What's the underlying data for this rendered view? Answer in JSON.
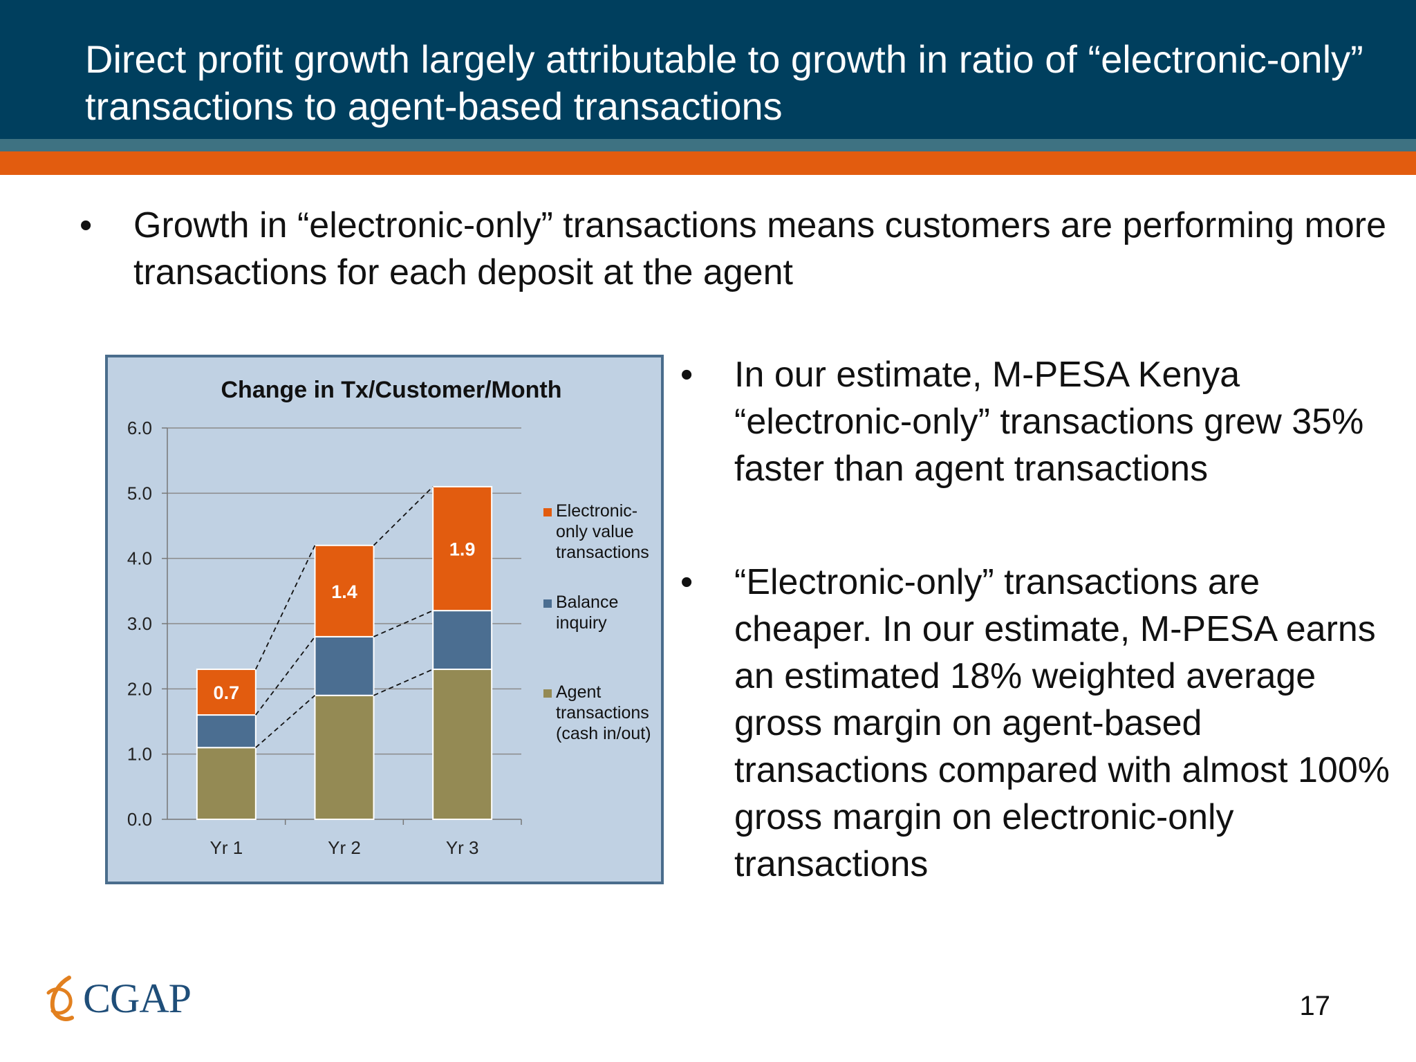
{
  "header": {
    "title": "Direct profit growth largely attributable to growth in ratio of “electronic-only” transactions to agent-based transactions"
  },
  "bullets": [
    {
      "symbol": "•",
      "text": "Growth in “electronic-only” transactions means customers are performing more transactions for each deposit at the agent"
    },
    {
      "symbol": "•",
      "text": "In our estimate, M-PESA Kenya “electronic-only” transactions grew 35% faster than agent transactions"
    },
    {
      "symbol": "•",
      "text": "“Electronic-only” transactions are cheaper. In our estimate, M-PESA earns an estimated 18% weighted average gross margin on agent-based transactions compared with almost 100% gross margin on electronic-only transactions"
    }
  ],
  "chart_data": {
    "type": "bar",
    "stacked": true,
    "title": "Change in Tx/Customer/Month",
    "categories": [
      "Yr 1",
      "Yr 2",
      "Yr 3"
    ],
    "ylim": [
      0,
      6
    ],
    "yticks": [
      "0.0",
      "1.0",
      "2.0",
      "3.0",
      "4.0",
      "5.0",
      "6.0"
    ],
    "grid": true,
    "legend": "right",
    "connector_lines": "dashed",
    "series": [
      {
        "name": "Agent transactions (cash in/out)",
        "legend_lines": [
          "Agent",
          "transactions",
          "(cash in/out)"
        ],
        "color": "#948a54",
        "values": [
          1.1,
          1.9,
          2.3
        ],
        "labels": [
          "",
          "",
          ""
        ]
      },
      {
        "name": "Balance inquiry",
        "legend_lines": [
          "Balance",
          "inquiry"
        ],
        "color": "#4b6e91",
        "values": [
          0.5,
          0.9,
          0.9
        ],
        "labels": [
          "",
          "",
          ""
        ]
      },
      {
        "name": "Electronic-only value transactions",
        "legend_lines": [
          "Electronic-",
          "only value",
          "transactions"
        ],
        "color": "#e25c0f",
        "values": [
          0.7,
          1.4,
          1.9
        ],
        "labels": [
          "0.7",
          "1.4",
          "1.9"
        ]
      }
    ]
  },
  "footer": {
    "logo_text": "CGAP",
    "page_number": "17"
  },
  "colors": {
    "header_bg": "#003f5e",
    "teal_band": "#3e7282",
    "orange_band": "#e25c0f",
    "chart_bg": "#c0d1e3"
  }
}
